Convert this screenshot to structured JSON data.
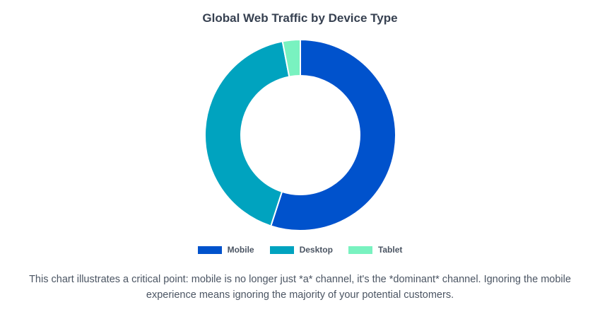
{
  "chart_data": {
    "type": "pie",
    "title": "Global Web Traffic by Device Type",
    "categories": [
      "Mobile",
      "Desktop",
      "Tablet"
    ],
    "values": [
      55,
      42,
      3
    ],
    "colors": [
      "#0052cc",
      "#00a3bf",
      "#79f2c0"
    ],
    "legend_position": "bottom"
  },
  "caption": {
    "line1": "This chart illustrates a critical point: mobile is no longer just *a* channel, it's the *dominant* channel. Ignoring the mobile",
    "line2": "experience means ignoring the majority of your potential customers."
  }
}
